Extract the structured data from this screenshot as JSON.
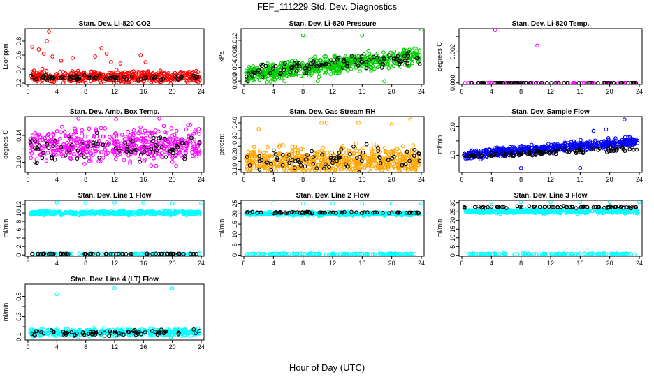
{
  "figure": {
    "title": "FEF_111229  Std. Dev. Diagnostics",
    "xlabel": "Hour of Day (UTC)",
    "colors": {
      "reference": "#000000",
      "co2": "#ff0000",
      "pressure": "#00cc00",
      "temp": "#ff00ff",
      "rh": "#ffa500",
      "flow": "#0000ff",
      "line": "#00ffff"
    }
  },
  "chart_data": [
    {
      "type": "scatter",
      "title": "Stan. Dev. Li-820 CO2",
      "ylabel": "Lcor ppm",
      "color": "#ff0000",
      "xlim": [
        0,
        24
      ],
      "ylim": [
        0.18,
        0.98
      ],
      "x_ticks": [
        0,
        4,
        8,
        12,
        16,
        20,
        24
      ],
      "y_ticks": [
        0.2,
        0.4,
        0.6,
        0.8
      ],
      "y_tick_labels": [
        "0.2",
        "0.4",
        "0.6",
        "0.8"
      ],
      "colored_series": {
        "base": 0.29,
        "spread": 0.12,
        "trend": [
          0,
          0
        ],
        "n": 500
      },
      "black_series": {
        "base": 0.28,
        "spread": 0.05,
        "trend": [
          0,
          0
        ],
        "n": 70
      },
      "outliers": [
        [
          0.6,
          0.72
        ],
        [
          1.5,
          0.68
        ],
        [
          2.2,
          0.62
        ],
        [
          2.6,
          0.8
        ],
        [
          2.9,
          0.94
        ],
        [
          3.4,
          0.58
        ],
        [
          4.6,
          0.52
        ],
        [
          6.2,
          0.56
        ],
        [
          9.3,
          0.58
        ],
        [
          10.2,
          0.7
        ],
        [
          10.9,
          0.62
        ],
        [
          11.5,
          0.5
        ],
        [
          12.8,
          0.48
        ],
        [
          15.6,
          0.6
        ],
        [
          16.3,
          0.5
        ]
      ]
    },
    {
      "type": "scatter",
      "title": "Stan. Dev. Li-820 Pressure",
      "ylabel": "kPa",
      "color": "#00cc00",
      "xlim": [
        0,
        24
      ],
      "ylim": [
        -0.001,
        0.0155
      ],
      "x_ticks": [
        0,
        4,
        8,
        12,
        16,
        20,
        24
      ],
      "y_ticks": [
        0.0,
        0.004,
        0.008,
        0.012
      ],
      "y_tick_labels": [
        "0.000",
        "0.004",
        "0.008",
        "0.012"
      ],
      "colored_series": {
        "base": 0.002,
        "spread": 0.0035,
        "trend": [
          0.0,
          0.0055
        ],
        "n": 600
      },
      "black_series": {
        "base": 0.0025,
        "spread": 0.003,
        "trend": [
          0.0,
          0.005
        ],
        "n": 100
      },
      "outliers": [
        [
          8,
          0.0135
        ],
        [
          16,
          0.0135
        ],
        [
          24,
          0.0152
        ],
        [
          5.5,
          0.0
        ],
        [
          10,
          0.0
        ],
        [
          19,
          0.0
        ]
      ]
    },
    {
      "type": "scatter",
      "title": "Stan. Dev. Li-820 Temp.",
      "ylabel": "degrees C",
      "color": "#ff00ff",
      "xlim": [
        0,
        24
      ],
      "ylim": [
        -0.0001,
        0.0035
      ],
      "x_ticks": [
        0,
        4,
        8,
        12,
        16,
        20,
        24
      ],
      "y_ticks": [
        0.0,
        0.001,
        0.002,
        0.003
      ],
      "y_tick_labels": [
        "0.000",
        "",
        "0.002",
        ""
      ],
      "colored_series": {
        "base": 0.0,
        "spread": 0.0,
        "trend": [
          0,
          0
        ],
        "n": 70
      },
      "black_series": {
        "base": 0.0,
        "spread": 0.0,
        "trend": [
          0,
          0
        ],
        "n": 70
      },
      "outliers": [
        [
          4.5,
          0.0034
        ],
        [
          10.2,
          0.0024
        ],
        [
          22,
          0.0
        ]
      ]
    },
    {
      "type": "scatter",
      "title": "Stan. Dev. Amb. Box Temp.",
      "ylabel": "degrees C",
      "color": "#ff00ff",
      "xlim": [
        0,
        24
      ],
      "ylim": [
        0.085,
        0.168
      ],
      "x_ticks": [
        0,
        4,
        8,
        12,
        16,
        20,
        24
      ],
      "y_ticks": [
        0.1,
        0.12,
        0.14
      ],
      "y_tick_labels": [
        "0.10",
        "",
        "0.14"
      ],
      "colored_series": {
        "base": 0.125,
        "spread": 0.035,
        "trend": [
          0,
          0
        ],
        "n": 500
      },
      "black_series": {
        "base": 0.12,
        "spread": 0.03,
        "trend": [
          0,
          0
        ],
        "n": 80
      },
      "outliers": [
        [
          7,
          0.165
        ],
        [
          12.2,
          0.164
        ],
        [
          18.2,
          0.165
        ],
        [
          22.5,
          0.156
        ]
      ]
    },
    {
      "type": "scatter",
      "title": "Stan. Dev. Gas Stream RH",
      "ylabel": "percent",
      "color": "#ffa500",
      "xlim": [
        0,
        24
      ],
      "ylim": [
        0.08,
        0.44
      ],
      "x_ticks": [
        0,
        4,
        8,
        12,
        16,
        20,
        24
      ],
      "y_ticks": [
        0.1,
        0.15,
        0.2,
        0.25,
        0.3,
        0.35,
        0.4
      ],
      "y_tick_labels": [
        "0.10",
        "",
        "0.20",
        "",
        "0.30",
        "",
        "0.40"
      ],
      "colored_series": {
        "base": 0.15,
        "spread": 0.13,
        "trend": [
          0,
          0
        ],
        "n": 600
      },
      "black_series": {
        "base": 0.16,
        "spread": 0.12,
        "trend": [
          0,
          0
        ],
        "n": 80
      },
      "outliers": [
        [
          2,
          0.36
        ],
        [
          10.5,
          0.4
        ],
        [
          11.2,
          0.4
        ],
        [
          15.5,
          0.4
        ],
        [
          20,
          0.39
        ],
        [
          22.5,
          0.42
        ]
      ]
    },
    {
      "type": "scatter",
      "title": "Stan. Dev. Sample Flow",
      "ylabel": "ml/min",
      "color": "#0000ff",
      "xlim": [
        0,
        24
      ],
      "ylim": [
        0.4,
        2.35
      ],
      "x_ticks": [
        0,
        4,
        8,
        12,
        16,
        20,
        24
      ],
      "y_ticks": [
        1.0,
        1.5,
        2.0
      ],
      "y_tick_labels": [
        "1.0",
        "",
        "2.0"
      ],
      "colored_series": {
        "base": 1.0,
        "spread": 0.22,
        "trend": [
          0,
          0.5
        ],
        "n": 600
      },
      "black_series": {
        "base": 0.95,
        "spread": 0.12,
        "trend": [
          0,
          0.3
        ],
        "n": 100
      },
      "outliers": [
        [
          8,
          0.55
        ],
        [
          16,
          0.55
        ],
        [
          22,
          2.25
        ],
        [
          17.8,
          1.85
        ],
        [
          19.5,
          1.9
        ]
      ]
    },
    {
      "type": "scatter",
      "title": "Stan. Dev. Line 1 Flow",
      "ylabel": "ml/min",
      "color": "#00ffff",
      "xlim": [
        0,
        24
      ],
      "ylim": [
        -0.3,
        13
      ],
      "x_ticks": [
        0,
        4,
        8,
        12,
        16,
        20,
        24
      ],
      "y_ticks": [
        0,
        2,
        4,
        6,
        8,
        10,
        12
      ],
      "y_tick_labels": [
        "0",
        "2",
        "4",
        "6",
        "8",
        "10",
        "12"
      ],
      "bands": [
        {
          "base": 10.0,
          "spread": 0.7,
          "color": "colored",
          "n": 450
        },
        {
          "base": 0.25,
          "spread": 0.15,
          "color": "colored",
          "n": 120
        },
        {
          "base": 0.25,
          "spread": 0.1,
          "color": "black",
          "n": 70
        }
      ],
      "outliers": [
        [
          4,
          12.5
        ],
        [
          8,
          12.5
        ],
        [
          12,
          12.5
        ],
        [
          16,
          12.5
        ],
        [
          20,
          12.3
        ],
        [
          24,
          12.3
        ]
      ]
    },
    {
      "type": "scatter",
      "title": "Stan. Dev. Line 2 Flow",
      "ylabel": "ml/min",
      "color": "#00ffff",
      "xlim": [
        0,
        24
      ],
      "ylim": [
        -0.5,
        26.5
      ],
      "x_ticks": [
        0,
        4,
        8,
        12,
        16,
        20,
        24
      ],
      "y_ticks": [
        0,
        5,
        10,
        15,
        20,
        25
      ],
      "y_tick_labels": [
        "0",
        "5",
        "10",
        "15",
        "20",
        "25"
      ],
      "bands": [
        {
          "base": 20.0,
          "spread": 1.2,
          "color": "colored",
          "n": 420
        },
        {
          "base": 0.6,
          "spread": 0.4,
          "color": "colored",
          "n": 120
        },
        {
          "base": 20.6,
          "spread": 0.5,
          "color": "black",
          "n": 75
        }
      ],
      "outliers": [
        [
          4,
          25
        ],
        [
          8,
          25
        ],
        [
          12,
          25
        ],
        [
          16,
          25
        ],
        [
          20,
          25
        ],
        [
          24,
          25
        ]
      ]
    },
    {
      "type": "scatter",
      "title": "Stan. Dev. Line 3 Flow",
      "ylabel": "ml/min",
      "color": "#00ffff",
      "xlim": [
        0,
        24
      ],
      "ylim": [
        -0.5,
        31.5
      ],
      "x_ticks": [
        0,
        4,
        8,
        12,
        16,
        20,
        24
      ],
      "y_ticks": [
        0,
        5,
        10,
        15,
        20,
        25,
        30
      ],
      "y_tick_labels": [
        "0",
        "5",
        "10",
        "15",
        "20",
        "25",
        "30"
      ],
      "bands": [
        {
          "base": 25.2,
          "spread": 1.6,
          "color": "colored",
          "n": 420
        },
        {
          "base": 0.8,
          "spread": 0.5,
          "color": "colored",
          "n": 120
        },
        {
          "base": 27.6,
          "spread": 0.9,
          "color": "black",
          "n": 75
        }
      ],
      "outliers": [
        [
          4,
          30.5
        ],
        [
          8,
          30.5
        ],
        [
          12,
          30.5
        ],
        [
          16,
          30.5
        ],
        [
          20,
          30.5
        ],
        [
          24,
          30.5
        ]
      ]
    },
    {
      "type": "scatter",
      "title": "Stan. Dev. Line 4 (LT) Flow",
      "ylabel": "ml/min",
      "color": "#00ffff",
      "xlim": [
        0,
        24
      ],
      "ylim": [
        0.07,
        0.62
      ],
      "x_ticks": [
        0,
        4,
        8,
        12,
        16,
        20,
        24
      ],
      "y_ticks": [
        0.1,
        0.2,
        0.3,
        0.4,
        0.5
      ],
      "y_tick_labels": [
        "0.1",
        "",
        "0.3",
        "",
        "0.5"
      ],
      "bands": [
        {
          "base": 0.145,
          "spread": 0.05,
          "color": "colored",
          "n": 450
        },
        {
          "base": 0.14,
          "spread": 0.04,
          "color": "black",
          "n": 75
        }
      ],
      "outliers": [
        [
          4,
          0.52
        ],
        [
          12,
          0.58
        ],
        [
          20,
          0.58
        ]
      ]
    }
  ]
}
